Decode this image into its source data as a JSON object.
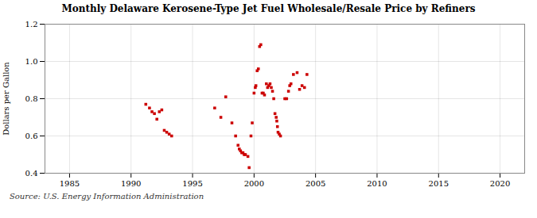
{
  "chart_data": {
    "type": "scatter",
    "title": "Monthly Delaware Kerosene-Type Jet Fuel Wholesale/Resale Price by Refiners",
    "ylabel": "Dollars per Gallon",
    "source": "Source: U.S. Energy Information Administration",
    "color": "#cc0000",
    "marker": "square",
    "grid": true,
    "xlim": [
      1983,
      2022
    ],
    "ylim": [
      0.4,
      1.2
    ],
    "xticks": [
      1985,
      1990,
      1995,
      2000,
      2005,
      2010,
      2015,
      2020
    ],
    "yticks": [
      0.4,
      0.6,
      0.8,
      {
        "value": 1.0,
        "label": "1.0"
      },
      1.2
    ],
    "x": [
      1991.2,
      1991.5,
      1991.7,
      1991.9,
      1992.1,
      1992.3,
      1992.5,
      1992.7,
      1992.9,
      1993.1,
      1993.3,
      1996.8,
      1997.3,
      1997.7,
      1998.2,
      1998.5,
      1998.7,
      1998.8,
      1998.9,
      1999.0,
      1999.1,
      1999.2,
      1999.3,
      1999.5,
      1999.6,
      1999.75,
      1999.85,
      2000.0,
      2000.1,
      2000.15,
      2000.25,
      2000.35,
      2000.45,
      2000.55,
      2000.65,
      2000.75,
      2000.85,
      2001.0,
      2001.1,
      2001.2,
      2001.3,
      2001.4,
      2001.5,
      2001.6,
      2001.7,
      2001.8,
      2001.85,
      2001.9,
      2001.95,
      2002.05,
      2002.15,
      2002.5,
      2002.65,
      2002.8,
      2002.9,
      2003.0,
      2003.2,
      2003.5,
      2003.7,
      2003.9,
      2004.1,
      2004.3
    ],
    "values": [
      0.77,
      0.75,
      0.73,
      0.72,
      0.69,
      0.73,
      0.74,
      0.63,
      0.62,
      0.61,
      0.6,
      0.75,
      0.7,
      0.81,
      0.67,
      0.6,
      0.55,
      0.53,
      0.52,
      0.51,
      0.51,
      0.5,
      0.5,
      0.49,
      0.43,
      0.6,
      0.67,
      0.83,
      0.86,
      0.87,
      0.95,
      0.96,
      1.08,
      1.09,
      0.83,
      0.83,
      0.82,
      0.88,
      0.86,
      0.87,
      0.88,
      0.86,
      0.84,
      0.8,
      0.72,
      0.7,
      0.68,
      0.65,
      0.62,
      0.61,
      0.6,
      0.8,
      0.8,
      0.84,
      0.87,
      0.88,
      0.93,
      0.94,
      0.85,
      0.87,
      0.86,
      0.93
    ]
  }
}
